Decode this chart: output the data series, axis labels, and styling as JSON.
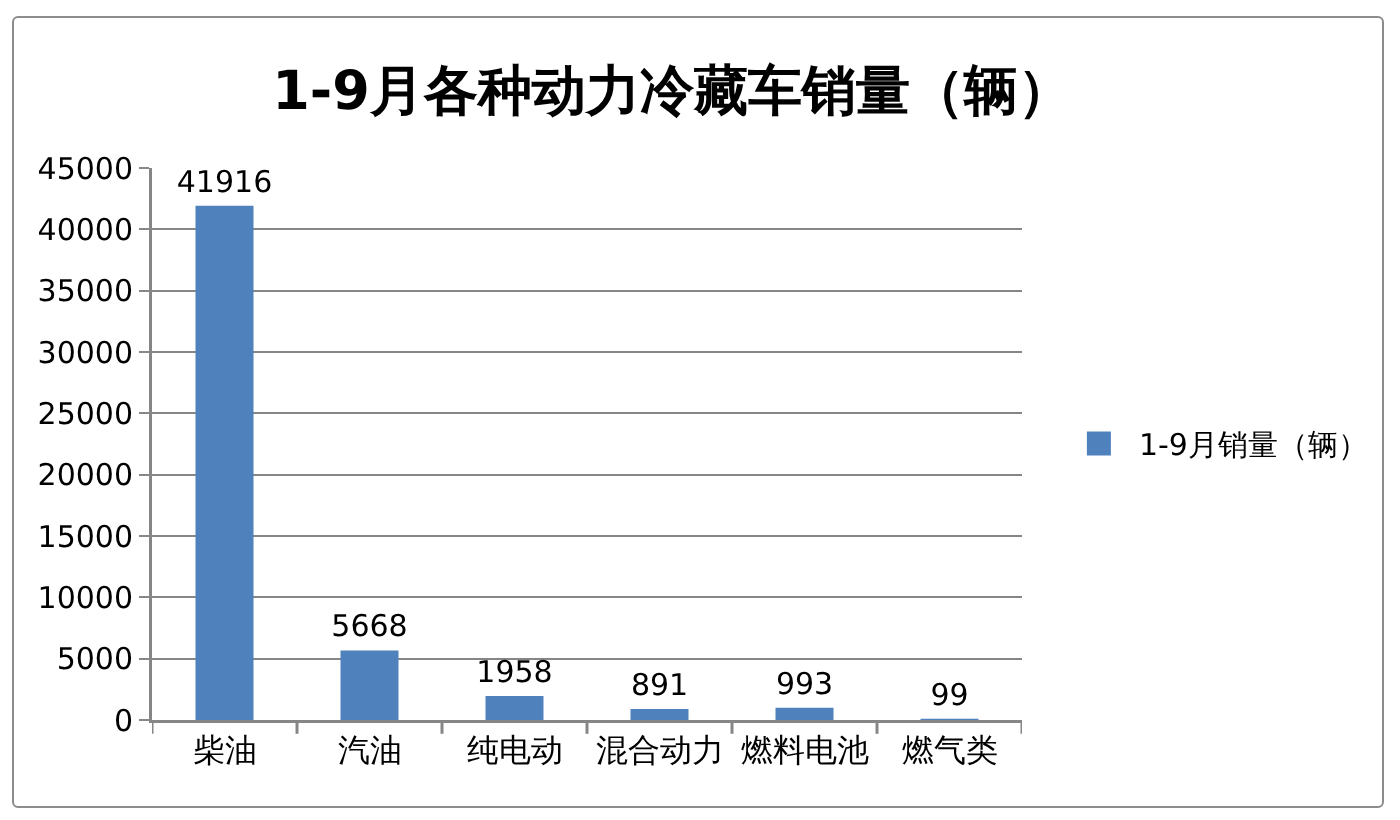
{
  "chart_data": {
    "type": "bar",
    "title": "1-9月各种动力冷藏车销量（辆）",
    "categories": [
      "柴油",
      "汽油",
      "纯电动",
      "混合动力",
      "燃料电池",
      "燃气类"
    ],
    "series": [
      {
        "name": "1-9月销量（辆）",
        "color": "#4f81bd",
        "values": [
          41916,
          5668,
          1958,
          891,
          993,
          99
        ]
      }
    ],
    "ylim": [
      0,
      45000
    ],
    "yticks": [
      0,
      5000,
      10000,
      15000,
      20000,
      25000,
      30000,
      35000,
      40000,
      45000
    ],
    "grid": "y",
    "legend": "right",
    "data_labels": true
  }
}
